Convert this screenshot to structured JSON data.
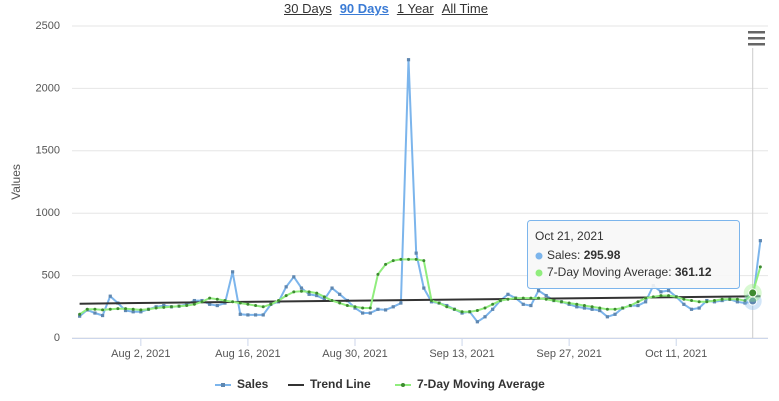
{
  "range_selector": {
    "buttons": [
      "30 Days",
      "90 Days",
      "1 Year",
      "All Time"
    ],
    "active": 1
  },
  "chart_data": {
    "type": "line",
    "y_axis_label": "Values",
    "x": [
      "2021-07-25",
      "2021-07-26",
      "2021-07-27",
      "2021-07-28",
      "2021-07-29",
      "2021-07-30",
      "2021-07-31",
      "2021-08-01",
      "2021-08-02",
      "2021-08-03",
      "2021-08-04",
      "2021-08-05",
      "2021-08-06",
      "2021-08-07",
      "2021-08-08",
      "2021-08-09",
      "2021-08-10",
      "2021-08-11",
      "2021-08-12",
      "2021-08-13",
      "2021-08-14",
      "2021-08-15",
      "2021-08-16",
      "2021-08-17",
      "2021-08-18",
      "2021-08-19",
      "2021-08-20",
      "2021-08-21",
      "2021-08-22",
      "2021-08-23",
      "2021-08-24",
      "2021-08-25",
      "2021-08-26",
      "2021-08-27",
      "2021-08-28",
      "2021-08-29",
      "2021-08-30",
      "2021-08-31",
      "2021-09-01",
      "2021-09-02",
      "2021-09-03",
      "2021-09-04",
      "2021-09-05",
      "2021-09-06",
      "2021-09-07",
      "2021-09-08",
      "2021-09-09",
      "2021-09-10",
      "2021-09-11",
      "2021-09-12",
      "2021-09-13",
      "2021-09-14",
      "2021-09-15",
      "2021-09-16",
      "2021-09-17",
      "2021-09-18",
      "2021-09-19",
      "2021-09-20",
      "2021-09-21",
      "2021-09-22",
      "2021-09-23",
      "2021-09-24",
      "2021-09-25",
      "2021-09-26",
      "2021-09-27",
      "2021-09-28",
      "2021-09-29",
      "2021-09-30",
      "2021-10-01",
      "2021-10-02",
      "2021-10-03",
      "2021-10-04",
      "2021-10-05",
      "2021-10-06",
      "2021-10-07",
      "2021-10-08",
      "2021-10-09",
      "2021-10-10",
      "2021-10-11",
      "2021-10-12",
      "2021-10-13",
      "2021-10-14",
      "2021-10-15",
      "2021-10-16",
      "2021-10-17",
      "2021-10-18",
      "2021-10-19",
      "2021-10-20",
      "2021-10-21",
      "2021-10-22"
    ],
    "series": [
      {
        "name": "Sales",
        "color": "#7cb5ec",
        "marker_color": "#5f87b0",
        "marker": "square",
        "values": [
          175,
          225,
          200,
          180,
          335,
          280,
          220,
          210,
          210,
          230,
          250,
          260,
          250,
          255,
          270,
          300,
          300,
          270,
          260,
          280,
          530,
          190,
          185,
          185,
          185,
          270,
          290,
          410,
          490,
          400,
          350,
          340,
          310,
          400,
          350,
          300,
          240,
          200,
          200,
          230,
          225,
          250,
          280,
          2230,
          680,
          400,
          290,
          280,
          260,
          230,
          200,
          210,
          130,
          170,
          230,
          300,
          350,
          320,
          270,
          260,
          380,
          340,
          300,
          290,
          270,
          250,
          240,
          230,
          220,
          170,
          190,
          240,
          260,
          260,
          290,
          420,
          370,
          380,
          330,
          270,
          230,
          240,
          300,
          290,
          300,
          310,
          290,
          280,
          295.98,
          780
        ]
      },
      {
        "name": "Trend Line",
        "color": "#333333",
        "marker": "none",
        "x": [
          "2021-07-25",
          "2021-10-22"
        ],
        "values": [
          275,
          335
        ]
      },
      {
        "name": "7-Day Moving Average",
        "color": "#90ed7d",
        "marker_color": "#3d8a30",
        "marker": "circle",
        "values": [
          190,
          230,
          230,
          225,
          230,
          235,
          235,
          230,
          225,
          230,
          240,
          245,
          250,
          255,
          260,
          270,
          290,
          320,
          310,
          300,
          290,
          280,
          270,
          260,
          250,
          270,
          300,
          340,
          370,
          375,
          370,
          360,
          330,
          300,
          280,
          260,
          250,
          240,
          240,
          510,
          590,
          620,
          630,
          630,
          630,
          620,
          300,
          280,
          250,
          230,
          210,
          210,
          220,
          240,
          270,
          300,
          310,
          320,
          320,
          320,
          320,
          310,
          300,
          290,
          280,
          270,
          260,
          250,
          240,
          230,
          230,
          240,
          260,
          290,
          320,
          330,
          340,
          340,
          330,
          310,
          300,
          290,
          290,
          300,
          310,
          310,
          310,
          300,
          361.12,
          570
        ]
      }
    ],
    "xlim": [
      "2021-07-24",
      "2021-10-23"
    ],
    "xticks": [
      {
        "value": "2021-08-02",
        "label": "Aug 2, 2021"
      },
      {
        "value": "2021-08-16",
        "label": "Aug 16, 2021"
      },
      {
        "value": "2021-08-30",
        "label": "Aug 30, 2021"
      },
      {
        "value": "2021-09-13",
        "label": "Sep 13, 2021"
      },
      {
        "value": "2021-09-27",
        "label": "Sep 27, 2021"
      },
      {
        "value": "2021-10-11",
        "label": "Oct 11, 2021"
      }
    ],
    "ylim": [
      0,
      2500
    ],
    "yticks": [
      0,
      500,
      1000,
      1500,
      2000,
      2500
    ],
    "grid": true,
    "legend": "bottom",
    "tooltip": {
      "title": "Oct 21, 2021",
      "index": 88,
      "series": [
        0,
        2
      ]
    }
  }
}
